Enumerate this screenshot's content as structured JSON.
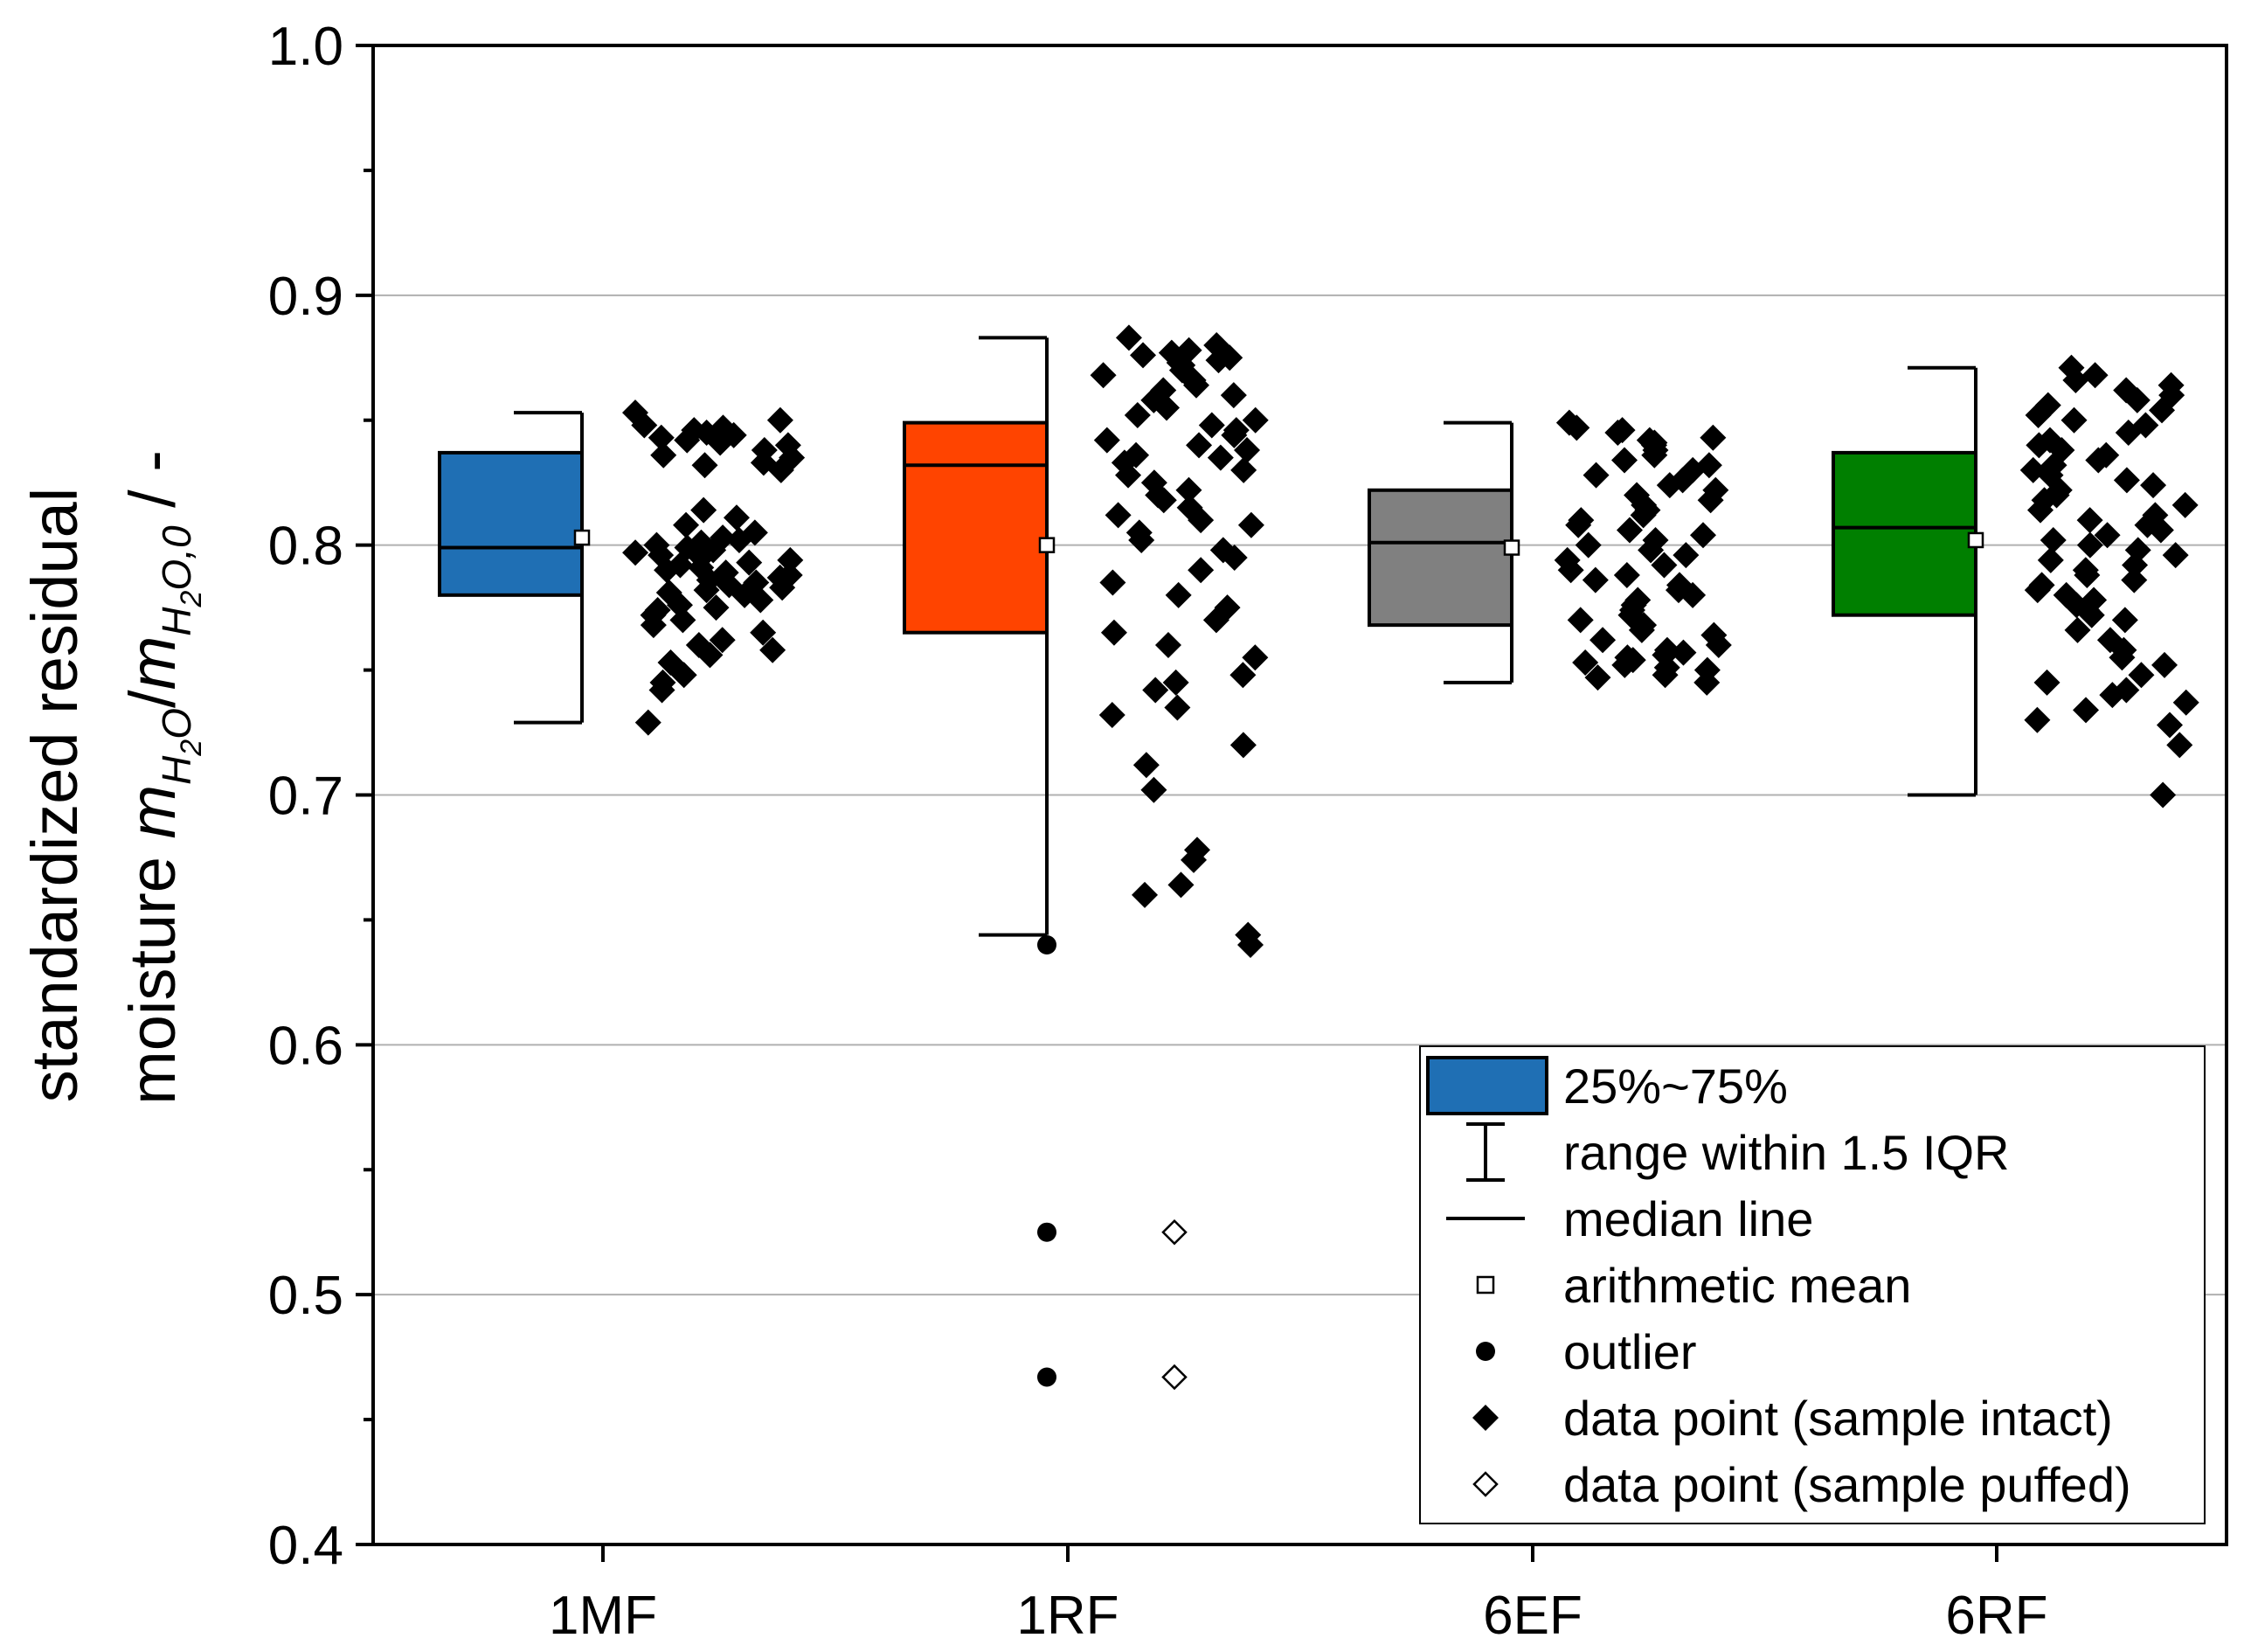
{
  "chart_data": {
    "type": "box",
    "title": "",
    "xlabel": "",
    "ylabel": {
      "line1": "standardized residual",
      "line2_prefix": "moisture ",
      "m": "m",
      "sub_h2o": "H",
      "sub_2": "2",
      "sub_o": "O",
      "slash": "/",
      "sub_h2o0_o": "O,0",
      "unit": " / -"
    },
    "ylim": [
      0.4,
      1.0
    ],
    "yticks": [
      "0.4",
      "0.5",
      "0.6",
      "0.7",
      "0.8",
      "0.9",
      "1.0"
    ],
    "ytick_values": [
      0.4,
      0.5,
      0.6,
      0.7,
      0.8,
      0.9,
      1.0
    ],
    "grid": true,
    "categories": [
      "1MF",
      "1RF",
      "6EF",
      "6RF"
    ],
    "boxes": [
      {
        "name": "1MF",
        "color": "#1f6fb4",
        "q1": 0.78,
        "median": 0.799,
        "q3": 0.837,
        "whisker_low": 0.729,
        "whisker_high": 0.853,
        "mean": 0.803,
        "outliers": []
      },
      {
        "name": "1RF",
        "color": "#ff4400",
        "q1": 0.765,
        "median": 0.832,
        "q3": 0.849,
        "whisker_low": 0.644,
        "whisker_high": 0.883,
        "mean": 0.8,
        "outliers": [
          0.64,
          0.525,
          0.467
        ]
      },
      {
        "name": "6EF",
        "color": "#808080",
        "q1": 0.768,
        "median": 0.801,
        "q3": 0.822,
        "whisker_low": 0.745,
        "whisker_high": 0.849,
        "mean": 0.799,
        "outliers": []
      },
      {
        "name": "6RF",
        "color": "#007f00",
        "q1": 0.772,
        "median": 0.807,
        "q3": 0.837,
        "whisker_low": 0.7,
        "whisker_high": 0.871,
        "mean": 0.802,
        "outliers": []
      }
    ],
    "points": [
      {
        "name": "1MF",
        "intact": [
          0.853,
          0.85,
          0.848,
          0.847,
          0.846,
          0.845,
          0.844,
          0.843,
          0.842,
          0.841,
          0.84,
          0.838,
          0.836,
          0.835,
          0.833,
          0.832,
          0.83,
          0.814,
          0.811,
          0.808,
          0.805,
          0.803,
          0.802,
          0.801,
          0.8,
          0.799,
          0.798,
          0.797,
          0.796,
          0.795,
          0.794,
          0.793,
          0.792,
          0.791,
          0.79,
          0.789,
          0.788,
          0.787,
          0.786,
          0.785,
          0.784,
          0.783,
          0.782,
          0.781,
          0.78,
          0.778,
          0.776,
          0.775,
          0.774,
          0.772,
          0.77,
          0.768,
          0.765,
          0.762,
          0.76,
          0.758,
          0.756,
          0.753,
          0.748,
          0.745,
          0.742,
          0.729
        ],
        "puffed": []
      },
      {
        "name": "1RF",
        "intact": [
          0.883,
          0.88,
          0.878,
          0.877,
          0.876,
          0.875,
          0.874,
          0.873,
          0.872,
          0.87,
          0.868,
          0.866,
          0.864,
          0.862,
          0.86,
          0.858,
          0.855,
          0.852,
          0.85,
          0.848,
          0.846,
          0.844,
          0.842,
          0.84,
          0.838,
          0.836,
          0.835,
          0.833,
          0.83,
          0.828,
          0.825,
          0.822,
          0.82,
          0.818,
          0.815,
          0.812,
          0.81,
          0.808,
          0.805,
          0.802,
          0.798,
          0.795,
          0.79,
          0.785,
          0.78,
          0.775,
          0.77,
          0.765,
          0.76,
          0.755,
          0.748,
          0.745,
          0.742,
          0.735,
          0.732,
          0.72,
          0.712,
          0.702,
          0.678,
          0.674,
          0.664,
          0.66,
          0.644,
          0.64
        ],
        "puffed": [
          0.525,
          0.467
        ]
      },
      {
        "name": "6EF",
        "intact": [
          0.849,
          0.847,
          0.846,
          0.845,
          0.843,
          0.842,
          0.841,
          0.84,
          0.838,
          0.836,
          0.834,
          0.832,
          0.83,
          0.828,
          0.826,
          0.824,
          0.822,
          0.82,
          0.818,
          0.816,
          0.814,
          0.812,
          0.81,
          0.808,
          0.806,
          0.804,
          0.802,
          0.8,
          0.798,
          0.796,
          0.794,
          0.792,
          0.79,
          0.788,
          0.786,
          0.784,
          0.782,
          0.78,
          0.778,
          0.776,
          0.774,
          0.772,
          0.77,
          0.768,
          0.766,
          0.764,
          0.762,
          0.76,
          0.758,
          0.757,
          0.756,
          0.755,
          0.754,
          0.753,
          0.752,
          0.751,
          0.75,
          0.748,
          0.747,
          0.745
        ],
        "puffed": []
      },
      {
        "name": "6RF",
        "intact": [
          0.871,
          0.868,
          0.866,
          0.864,
          0.862,
          0.86,
          0.858,
          0.856,
          0.854,
          0.852,
          0.85,
          0.848,
          0.845,
          0.842,
          0.84,
          0.838,
          0.836,
          0.834,
          0.832,
          0.83,
          0.828,
          0.826,
          0.824,
          0.822,
          0.82,
          0.818,
          0.816,
          0.814,
          0.812,
          0.81,
          0.808,
          0.806,
          0.804,
          0.802,
          0.8,
          0.798,
          0.796,
          0.794,
          0.792,
          0.79,
          0.788,
          0.786,
          0.784,
          0.782,
          0.78,
          0.778,
          0.776,
          0.774,
          0.772,
          0.77,
          0.766,
          0.762,
          0.758,
          0.755,
          0.752,
          0.748,
          0.745,
          0.742,
          0.74,
          0.737,
          0.734,
          0.73,
          0.728,
          0.72,
          0.7
        ],
        "puffed": []
      }
    ],
    "legend": {
      "position": "bottom-right",
      "items": [
        {
          "label": "25%~75%",
          "symbol": "box",
          "color": "#1f6fb4"
        },
        {
          "label": "range within 1.5 IQR",
          "symbol": "whisker"
        },
        {
          "label": "median line",
          "symbol": "line"
        },
        {
          "label": "arithmetic mean",
          "symbol": "open-square"
        },
        {
          "label": "outlier",
          "symbol": "dot"
        },
        {
          "label": "data point (sample intact)",
          "symbol": "filled-diamond"
        },
        {
          "label": "data point (sample puffed)",
          "symbol": "open-diamond"
        }
      ]
    }
  }
}
